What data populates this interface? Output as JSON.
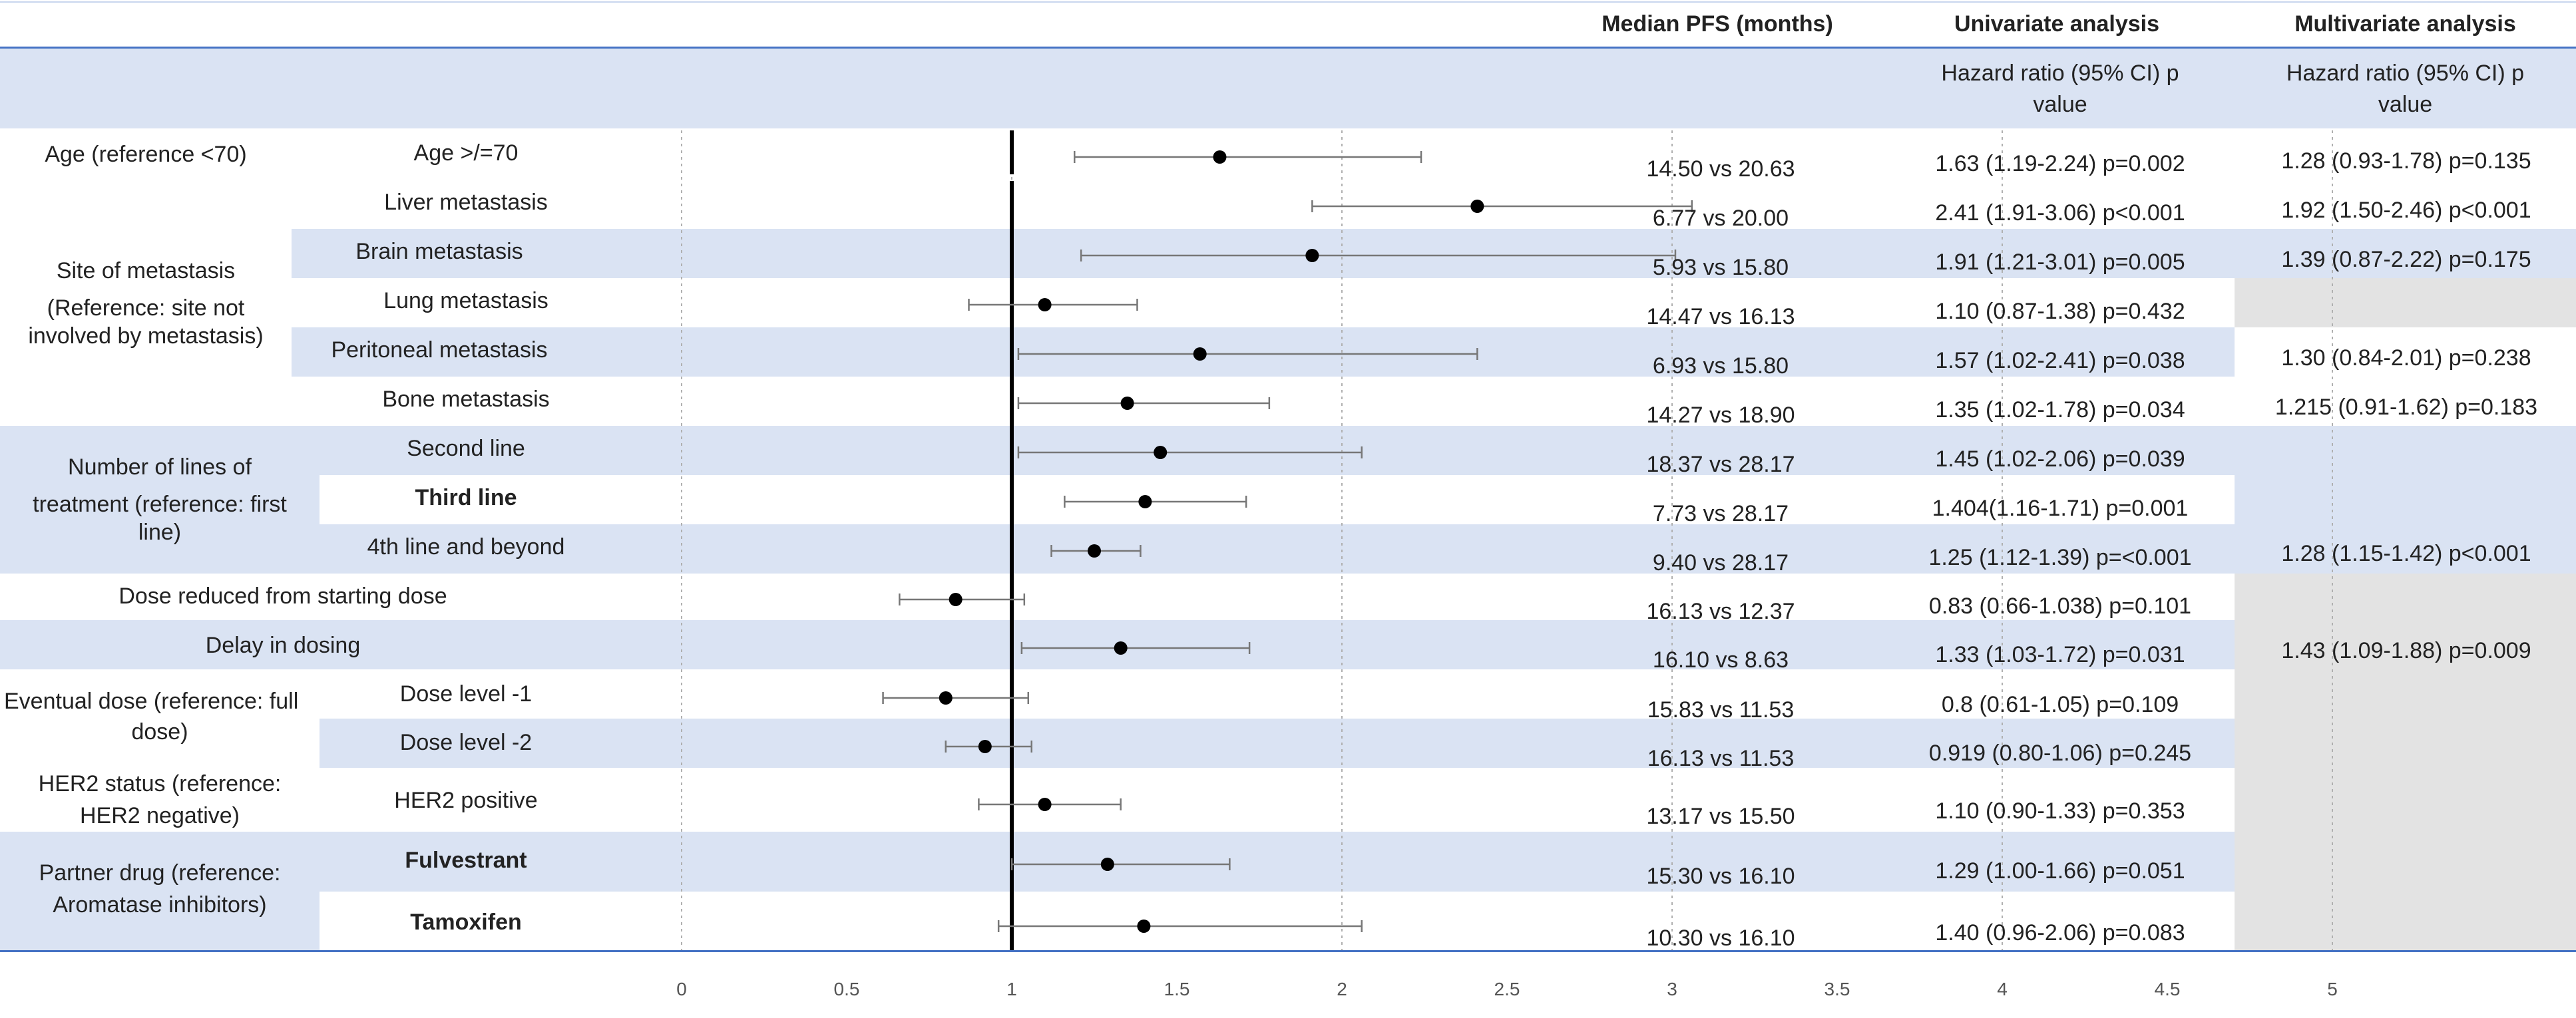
{
  "headers": {
    "median_pfs": "Median PFS (months)",
    "univariate": "Univariate analysis",
    "multivariate": "Multivariate analysis",
    "hr_line1": "Hazard ratio (95% CI) p",
    "hr_line2": "value"
  },
  "groups": {
    "age": [
      "Age (reference <70)"
    ],
    "site": [
      "Site of metastasis",
      "(Reference: site not",
      "involved by metastasis)"
    ],
    "lines": [
      "Number of lines of",
      "treatment (reference: first",
      "line)"
    ],
    "dose_reduced": [
      "Dose reduced from starting dose"
    ],
    "delay": [
      "Delay in dosing"
    ],
    "eventual": [
      "Eventual dose (reference: full",
      "dose)"
    ],
    "her2": [
      "HER2 status (reference:",
      "HER2 negative)"
    ],
    "partner": [
      "Partner drug (reference:",
      "Aromatase inhibitors)"
    ]
  },
  "rows": [
    {
      "label": "Age >/=70",
      "median": "14.50 vs 20.63",
      "uni": "1.63 (1.19-2.24) p=0.002",
      "multi": "1.28 (0.93-1.78) p=0.135"
    },
    {
      "label": "Liver metastasis",
      "median": "6.77 vs 20.00",
      "uni": "2.41 (1.91-3.06) p<0.001",
      "multi": "1.92 (1.50-2.46) p<0.001"
    },
    {
      "label": "Brain metastasis",
      "median": "5.93 vs 15.80",
      "uni": "1.91 (1.21-3.01) p=0.005",
      "multi": "1.39 (0.87-2.22) p=0.175"
    },
    {
      "label": "Lung metastasis",
      "median": "14.47 vs 16.13",
      "uni": "1.10 (0.87-1.38) p=0.432",
      "multi": ""
    },
    {
      "label": "Peritoneal metastasis",
      "median": "6.93 vs 15.80",
      "uni": "1.57 (1.02-2.41) p=0.038",
      "multi": "1.30 (0.84-2.01) p=0.238"
    },
    {
      "label": "Bone metastasis",
      "median": "14.27 vs 18.90",
      "uni": "1.35 (1.02-1.78) p=0.034",
      "multi": "1.215 (0.91-1.62) p=0.183"
    },
    {
      "label": "Second line",
      "median": "18.37 vs 28.17",
      "uni": "1.45 (1.02-2.06) p=0.039",
      "multi": ""
    },
    {
      "label": "Third line",
      "median": "7.73 vs 28.17",
      "uni": "1.404(1.16-1.71) p=0.001",
      "multi": ""
    },
    {
      "label": "4th line and beyond",
      "median": "9.40 vs 28.17",
      "uni": "1.25 (1.12-1.39) p=<0.001",
      "multi": "1.28 (1.15-1.42) p<0.001"
    },
    {
      "label": "",
      "median": "16.13 vs 12.37",
      "uni": "0.83 (0.66-1.038) p=0.101",
      "multi": ""
    },
    {
      "label": "",
      "median": "16.10 vs 8.63",
      "uni": "1.33 (1.03-1.72) p=0.031",
      "multi": "1.43 (1.09-1.88) p=0.009"
    },
    {
      "label": "Dose level -1",
      "median": "15.83 vs 11.53",
      "uni": "0.8 (0.61-1.05) p=0.109",
      "multi": ""
    },
    {
      "label": "Dose level -2",
      "median": "16.13 vs 11.53",
      "uni": "0.919 (0.80-1.06) p=0.245",
      "multi": ""
    },
    {
      "label": "HER2 positive",
      "median": "13.17 vs 15.50",
      "uni": "1.10 (0.90-1.33) p=0.353",
      "multi": ""
    },
    {
      "label": "Fulvestrant",
      "median": "15.30 vs 16.10",
      "uni": "1.29 (1.00-1.66) p=0.051",
      "multi": ""
    },
    {
      "label": "Tamoxifen",
      "median": "10.30 vs 16.10",
      "uni": "1.40 (0.96-2.06) p=0.083",
      "multi": ""
    }
  ],
  "chart_data": {
    "type": "scatter",
    "subtype": "forest-plot",
    "reference_line": 1,
    "xlim": [
      0,
      5
    ],
    "x_ticks": [
      "0",
      "0.5",
      "1",
      "1.5",
      "2",
      "2.5",
      "3",
      "3.5",
      "4",
      "4.5",
      "5"
    ],
    "grid": "vertical dashed",
    "points": [
      {
        "hr": 1.63,
        "lo": 1.19,
        "hi": 2.24
      },
      {
        "hr": 2.41,
        "lo": 1.91,
        "hi": 3.06
      },
      {
        "hr": 1.91,
        "lo": 1.21,
        "hi": 3.01
      },
      {
        "hr": 1.1,
        "lo": 0.87,
        "hi": 1.38
      },
      {
        "hr": 1.57,
        "lo": 1.02,
        "hi": 2.41
      },
      {
        "hr": 1.35,
        "lo": 1.02,
        "hi": 1.78
      },
      {
        "hr": 1.45,
        "lo": 1.02,
        "hi": 2.06
      },
      {
        "hr": 1.404,
        "lo": 1.16,
        "hi": 1.71
      },
      {
        "hr": 1.25,
        "lo": 1.12,
        "hi": 1.39
      },
      {
        "hr": 0.83,
        "lo": 0.66,
        "hi": 1.038
      },
      {
        "hr": 1.33,
        "lo": 1.03,
        "hi": 1.72
      },
      {
        "hr": 0.8,
        "lo": 0.61,
        "hi": 1.05
      },
      {
        "hr": 0.919,
        "lo": 0.8,
        "hi": 1.06
      },
      {
        "hr": 1.1,
        "lo": 0.9,
        "hi": 1.33
      },
      {
        "hr": 1.29,
        "lo": 1.0,
        "hi": 1.66
      },
      {
        "hr": 1.4,
        "lo": 0.96,
        "hi": 2.06
      }
    ]
  }
}
